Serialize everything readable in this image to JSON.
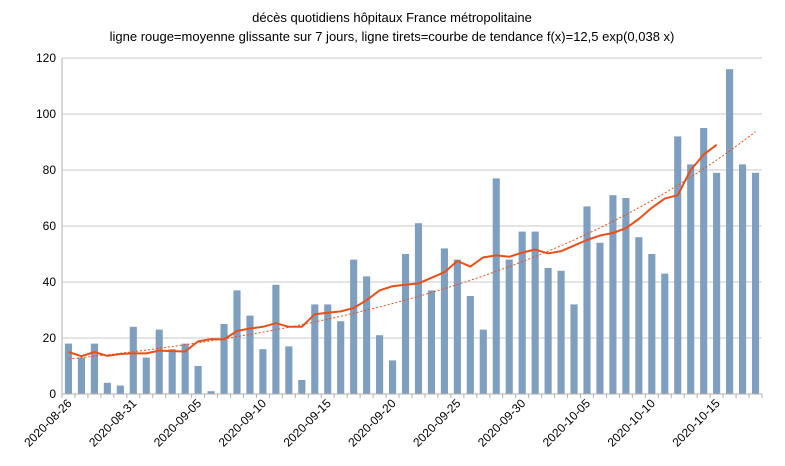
{
  "chart_data": {
    "type": "bar",
    "title": "décès quotidiens hôpitaux France métropolitaine",
    "subtitle": "ligne rouge=moyenne glissante sur 7 jours, ligne tirets=courbe de tendance f(x)=12,5 exp(0,038 x)",
    "xlabel": "",
    "ylabel": "",
    "ylim": [
      0,
      120
    ],
    "y_ticks": [
      0,
      20,
      40,
      60,
      80,
      100,
      120
    ],
    "grid": true,
    "x_tick_labels": [
      {
        "index": 0,
        "label": "2020-08-26"
      },
      {
        "index": 5,
        "label": "2020-08-31"
      },
      {
        "index": 10,
        "label": "2020-09-05"
      },
      {
        "index": 15,
        "label": "2020-09-10"
      },
      {
        "index": 20,
        "label": "2020-09-15"
      },
      {
        "index": 25,
        "label": "2020-09-20"
      },
      {
        "index": 30,
        "label": "2020-09-25"
      },
      {
        "index": 35,
        "label": "2020-09-30"
      },
      {
        "index": 40,
        "label": "2020-10-05"
      },
      {
        "index": 45,
        "label": "2020-10-10"
      },
      {
        "index": 50,
        "label": "2020-10-15"
      }
    ],
    "categories": [
      "2020-08-26",
      "2020-08-27",
      "2020-08-28",
      "2020-08-29",
      "2020-08-30",
      "2020-08-31",
      "2020-09-01",
      "2020-09-02",
      "2020-09-03",
      "2020-09-04",
      "2020-09-05",
      "2020-09-06",
      "2020-09-07",
      "2020-09-08",
      "2020-09-09",
      "2020-09-10",
      "2020-09-11",
      "2020-09-12",
      "2020-09-13",
      "2020-09-14",
      "2020-09-15",
      "2020-09-16",
      "2020-09-17",
      "2020-09-18",
      "2020-09-19",
      "2020-09-20",
      "2020-09-21",
      "2020-09-22",
      "2020-09-23",
      "2020-09-24",
      "2020-09-25",
      "2020-09-26",
      "2020-09-27",
      "2020-09-28",
      "2020-09-29",
      "2020-09-30",
      "2020-10-01",
      "2020-10-02",
      "2020-10-03",
      "2020-10-04",
      "2020-10-05",
      "2020-10-06",
      "2020-10-07",
      "2020-10-08",
      "2020-10-09",
      "2020-10-10",
      "2020-10-11",
      "2020-10-12",
      "2020-10-13",
      "2020-10-14",
      "2020-10-15",
      "2020-10-16",
      "2020-10-17",
      "2020-10-18"
    ],
    "series": [
      {
        "type": "bar",
        "color": "#7f9fc0",
        "values": [
          18,
          13,
          18,
          4,
          3,
          24,
          13,
          23,
          16,
          18,
          10,
          1,
          25,
          37,
          28,
          16,
          39,
          17,
          5,
          32,
          32,
          26,
          48,
          42,
          21,
          12,
          50,
          61,
          37,
          52,
          48,
          35,
          23,
          77,
          48,
          58,
          58,
          45,
          44,
          32,
          67,
          54,
          71,
          70,
          56,
          50,
          43,
          92,
          82,
          95,
          79,
          116,
          82,
          79
        ]
      },
      {
        "type": "line",
        "color": "#e8501a",
        "values": [
          15,
          13.5,
          15,
          13.6,
          14.3,
          14.5,
          14.5,
          15.5,
          15.3,
          15.2,
          18.8,
          19.6,
          19.5,
          22.5,
          23.4,
          24,
          25.3,
          24,
          24,
          28.5,
          29,
          29.5,
          30.7,
          33.5,
          37,
          38.5,
          39,
          39.5,
          41.5,
          43.5,
          47.5,
          45.5,
          48.8,
          49.5,
          49,
          50.5,
          51.6,
          50.2,
          51,
          53,
          55,
          56.6,
          57.5,
          59.2,
          62.5,
          66.5,
          69.8,
          71,
          80,
          85.5,
          89,
          null,
          null,
          null
        ]
      },
      {
        "type": "trend",
        "color": "#e8501a",
        "formula": "12,5 exp(0,038 x)",
        "a": 12.5,
        "b": 0.038
      }
    ]
  }
}
